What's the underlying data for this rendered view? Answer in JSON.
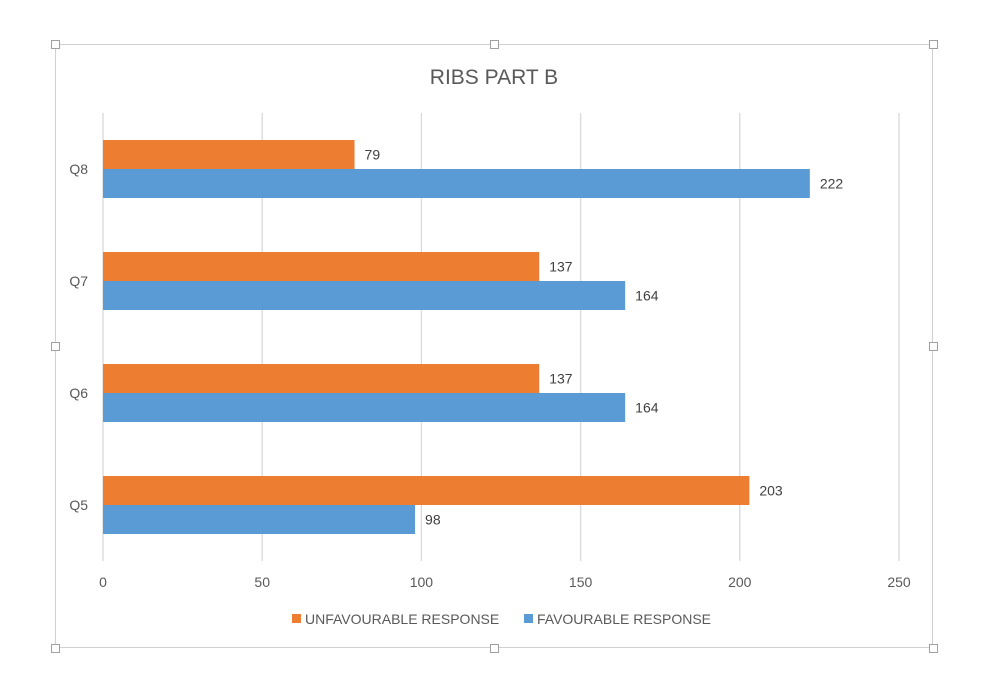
{
  "chart_data": {
    "type": "bar",
    "orientation": "horizontal",
    "title": "RIBS PART B",
    "categories": [
      "Q5",
      "Q6",
      "Q7",
      "Q8"
    ],
    "series": [
      {
        "name": "UNFAVOURABLE RESPONSE",
        "color": "#ED7D31",
        "values": [
          203,
          137,
          137,
          79
        ]
      },
      {
        "name": "FAVOURABLE RESPONSE",
        "color": "#5B9BD5",
        "values": [
          98,
          164,
          164,
          222
        ]
      }
    ],
    "xlim": [
      0,
      250
    ],
    "xticks": [
      0,
      50,
      100,
      150,
      200,
      250
    ],
    "grid": true,
    "legend": "bottom",
    "data_labels": true
  }
}
